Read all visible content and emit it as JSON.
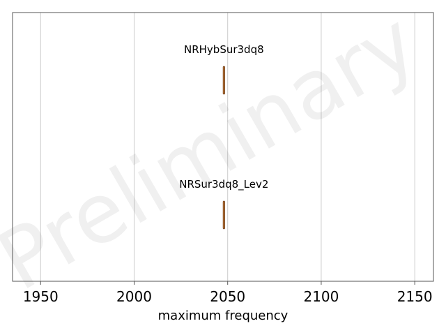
{
  "chart_data": {
    "type": "box",
    "xlabel": "maximum frequency",
    "xlim": [
      1935,
      2160
    ],
    "xticks": [
      1950,
      2000,
      2050,
      2100,
      2150
    ],
    "grid": "vertical",
    "series": [
      {
        "name": "NRHybSur3dq8",
        "min": 2047.6,
        "q1": 2047.8,
        "median": 2048.0,
        "q3": 2048.2,
        "max": 2048.4
      },
      {
        "name": "NRSur3dq8_Lev2",
        "min": 2047.6,
        "q1": 2047.8,
        "median": 2048.0,
        "q3": 2048.2,
        "max": 2048.4
      }
    ],
    "box_color": "#e08a3c",
    "edge_color": "#7a4a24",
    "watermark": "Preliminary"
  }
}
